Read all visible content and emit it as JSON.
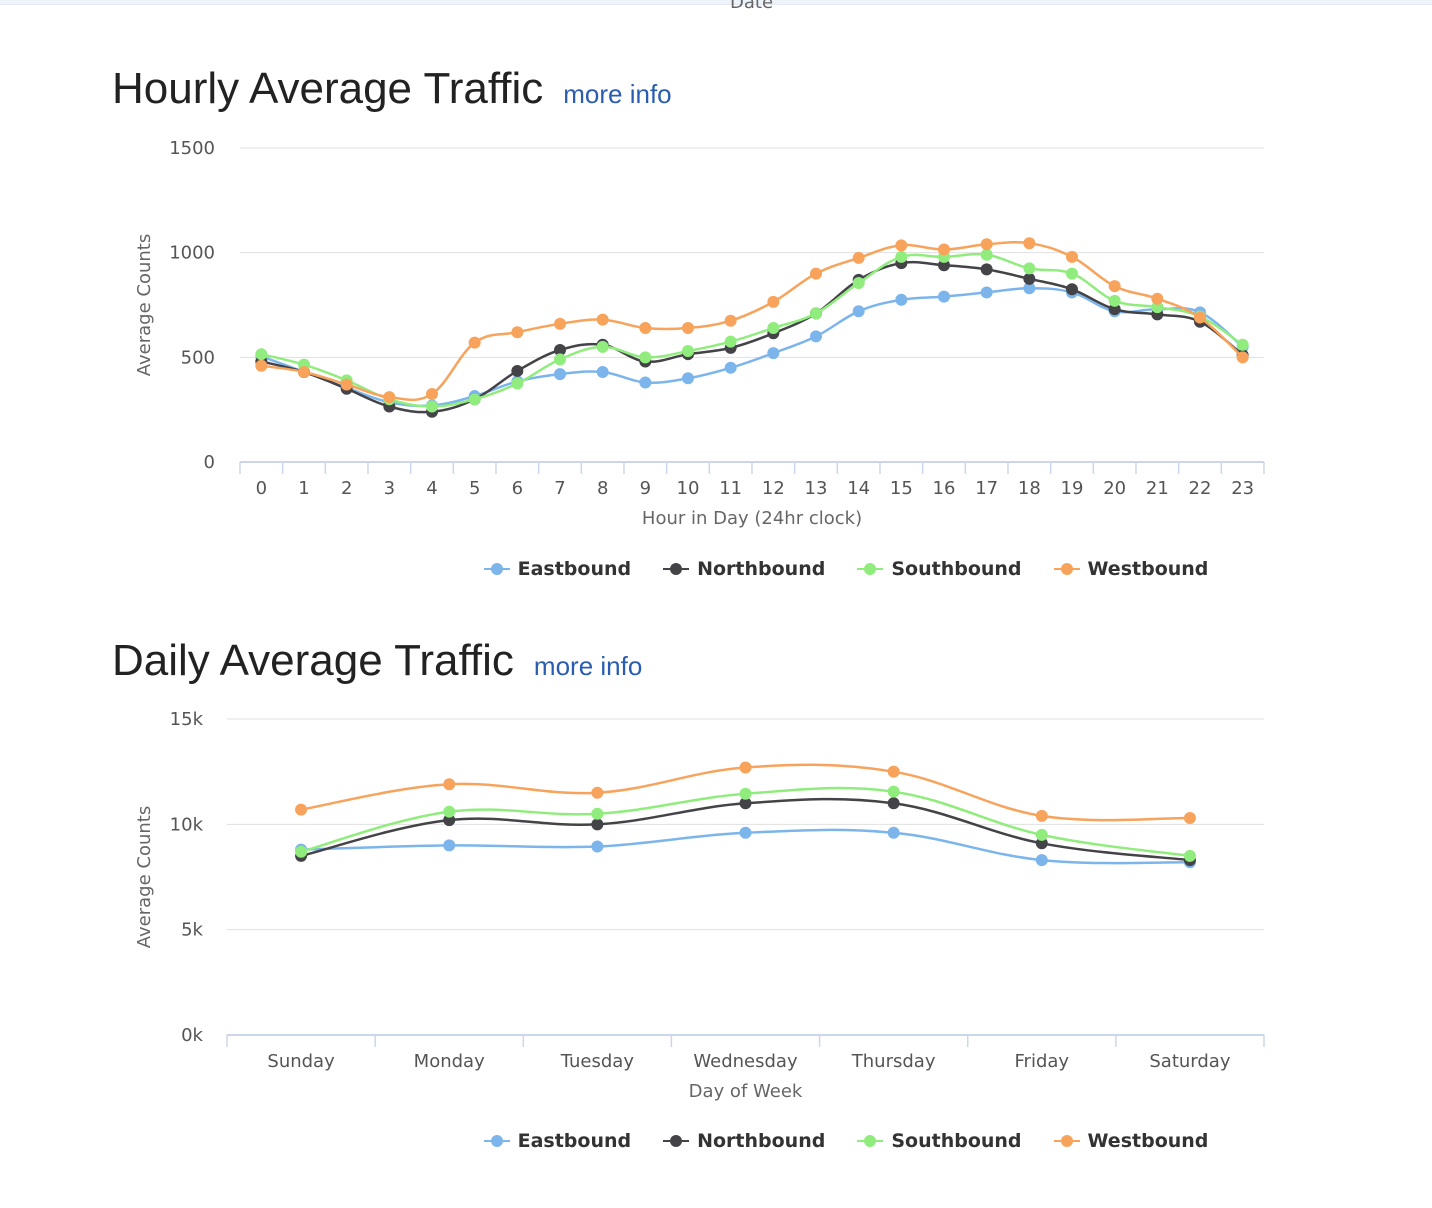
{
  "page": {
    "cut_off_label": "Date"
  },
  "colors": {
    "Eastbound": "#7cb5ec",
    "Northbound": "#434348",
    "Southbound": "#90ed7d",
    "Westbound": "#f7a35c"
  },
  "hourly": {
    "title": "Hourly Average Traffic",
    "more_info": "more info",
    "legend": [
      "Eastbound",
      "Northbound",
      "Southbound",
      "Westbound"
    ]
  },
  "daily": {
    "title": "Daily Average Traffic",
    "more_info": "more info",
    "legend": [
      "Eastbound",
      "Northbound",
      "Southbound",
      "Westbound"
    ]
  },
  "chart_data": [
    {
      "type": "line",
      "title": "Hourly Average Traffic",
      "xlabel": "Hour in Day (24hr clock)",
      "ylabel": "Average Counts",
      "ylim": [
        0,
        1500
      ],
      "yticks": [
        "0",
        "500",
        "1000",
        "1500"
      ],
      "grid": true,
      "legend": "bottom-center",
      "categories": [
        "0",
        "1",
        "2",
        "3",
        "4",
        "5",
        "6",
        "7",
        "8",
        "9",
        "10",
        "11",
        "12",
        "13",
        "14",
        "15",
        "16",
        "17",
        "18",
        "19",
        "20",
        "21",
        "22",
        "23"
      ],
      "series": [
        {
          "name": "Eastbound",
          "values": [
            505,
            430,
            355,
            285,
            270,
            315,
            385,
            420,
            430,
            380,
            400,
            450,
            520,
            600,
            720,
            775,
            790,
            810,
            830,
            810,
            720,
            730,
            715,
            550
          ]
        },
        {
          "name": "Northbound",
          "values": [
            480,
            430,
            350,
            265,
            240,
            300,
            435,
            535,
            560,
            480,
            515,
            545,
            615,
            710,
            870,
            950,
            940,
            920,
            875,
            825,
            730,
            705,
            670,
            510
          ]
        },
        {
          "name": "Southbound",
          "values": [
            515,
            465,
            390,
            300,
            265,
            300,
            375,
            490,
            550,
            500,
            530,
            575,
            640,
            710,
            855,
            980,
            980,
            990,
            925,
            900,
            770,
            740,
            695,
            560
          ]
        },
        {
          "name": "Westbound",
          "values": [
            460,
            430,
            370,
            310,
            325,
            570,
            620,
            660,
            680,
            640,
            640,
            675,
            765,
            900,
            975,
            1035,
            1015,
            1040,
            1045,
            980,
            840,
            780,
            690,
            500
          ]
        }
      ]
    },
    {
      "type": "line",
      "title": "Daily Average Traffic",
      "xlabel": "Day of Week",
      "ylabel": "Average Counts",
      "ylim": [
        0,
        15000
      ],
      "yticks": [
        "0k",
        "5k",
        "10k",
        "15k"
      ],
      "grid": true,
      "legend": "bottom-center",
      "categories": [
        "Sunday",
        "Monday",
        "Tuesday",
        "Wednesday",
        "Thursday",
        "Friday",
        "Saturday"
      ],
      "series": [
        {
          "name": "Eastbound",
          "values": [
            8800,
            9000,
            8950,
            9600,
            9600,
            8300,
            8200
          ]
        },
        {
          "name": "Northbound",
          "values": [
            8500,
            10200,
            10000,
            11000,
            11000,
            9100,
            8300
          ]
        },
        {
          "name": "Southbound",
          "values": [
            8700,
            10600,
            10500,
            11450,
            11550,
            9500,
            8500
          ]
        },
        {
          "name": "Westbound",
          "values": [
            10700,
            11900,
            11500,
            12700,
            12500,
            10400,
            10300
          ]
        }
      ]
    }
  ]
}
